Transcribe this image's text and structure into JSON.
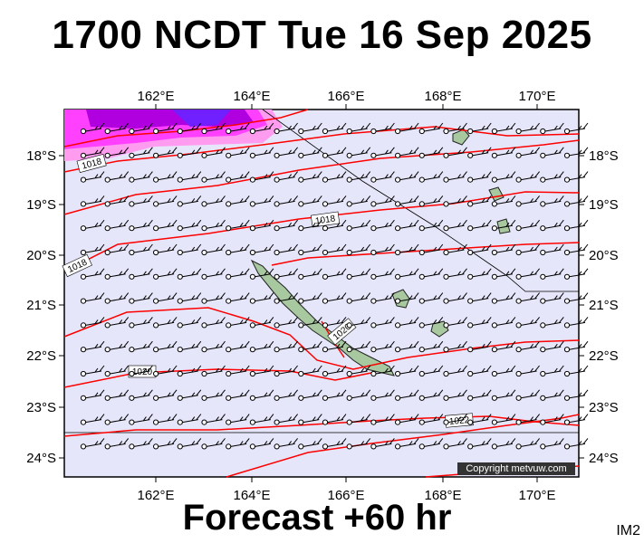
{
  "title": "1700 NCDT Tue 16 Sep 2025",
  "subtitle": "Forecast +60 hr",
  "tag": "IM2",
  "copyright": "Copyright metvuw.com",
  "lon_labels": [
    "162°E",
    "164°E",
    "166°E",
    "168°E",
    "170°E"
  ],
  "lat_labels": [
    "18°S",
    "19°S",
    "20°S",
    "21°S",
    "22°S",
    "23°S",
    "24°S"
  ],
  "isobar_labels": [
    "1018",
    "1018",
    "1018",
    "1020",
    "1020",
    "1022"
  ],
  "colors": {
    "ocean": "#e6e6fa",
    "isobar": "#ff0000",
    "rain_heavy": "#b000e0",
    "rain_mid": "#ff40ff",
    "rain_light": "#ff9cf0",
    "land": "#a8c8a0"
  }
}
